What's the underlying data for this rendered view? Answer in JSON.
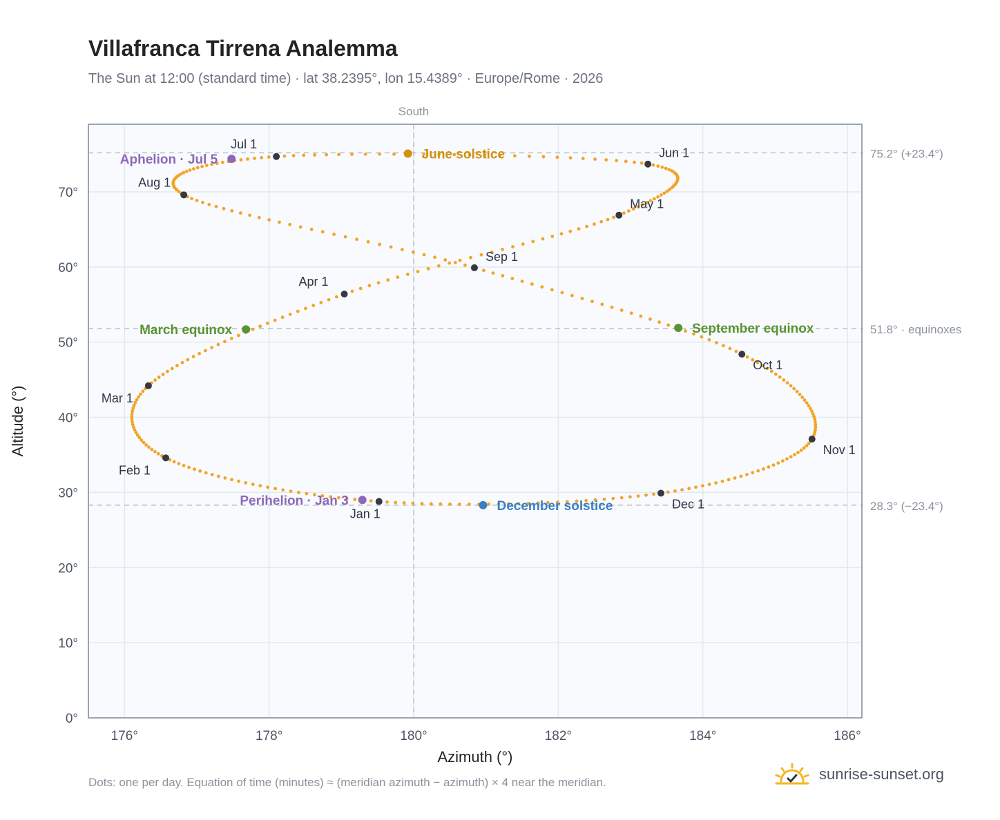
{
  "header": {
    "title": "Villafranca Tirrena Analemma",
    "subtitle": "The Sun at 12:00 (standard time) · lat 38.2395°, lon 15.4389° · Europe/Rome · 2026"
  },
  "footer": {
    "note": "Dots: one per day. Equation of time (minutes) ≈ (meridian azimuth − azimuth) × 4 near the meridian.",
    "brand": "sunrise-sunset.org",
    "brand_icon": "sunrise-logo-icon"
  },
  "chart_data": {
    "type": "scatter",
    "xlabel": "Azimuth (°)",
    "ylabel": "Altitude (°)",
    "xlim": [
      175.5,
      186.2
    ],
    "ylim": [
      0,
      79
    ],
    "xticks": [
      176,
      178,
      180,
      182,
      184,
      186
    ],
    "yticks": [
      0,
      10,
      20,
      30,
      40,
      50,
      60,
      70
    ],
    "x_tick_labels": [
      "176°",
      "178°",
      "180°",
      "182°",
      "184°",
      "186°"
    ],
    "y_tick_labels": [
      "0°",
      "10°",
      "20°",
      "30°",
      "40°",
      "50°",
      "60°",
      "70°"
    ],
    "grid": true,
    "meridian": {
      "azimuth": 180,
      "label": "South"
    },
    "reference_lines": [
      {
        "altitude": 75.2,
        "label": "75.2° (+23.4°)"
      },
      {
        "altitude": 51.8,
        "label": "51.8° · equinoxes"
      },
      {
        "altitude": 28.3,
        "label": "28.3° (−23.4°)"
      }
    ],
    "curve_anchors": [
      {
        "date": "Jan 1",
        "day": 1,
        "azimuth": 179.52,
        "altitude": 28.8
      },
      {
        "date": "Feb 1",
        "day": 32,
        "azimuth": 176.57,
        "altitude": 34.6
      },
      {
        "date": "Mar 1",
        "day": 60,
        "azimuth": 176.33,
        "altitude": 44.2
      },
      {
        "date": "Apr 1",
        "day": 91,
        "azimuth": 179.04,
        "altitude": 56.4
      },
      {
        "date": "May 1",
        "day": 121,
        "azimuth": 182.84,
        "altitude": 66.9
      },
      {
        "date": "Jun 1",
        "day": 152,
        "azimuth": 183.24,
        "altitude": 73.7
      },
      {
        "date": "Jul 1",
        "day": 182,
        "azimuth": 178.1,
        "altitude": 74.7
      },
      {
        "date": "Aug 1",
        "day": 213,
        "azimuth": 176.82,
        "altitude": 69.6
      },
      {
        "date": "Sep 1",
        "day": 244,
        "azimuth": 180.84,
        "altitude": 59.9
      },
      {
        "date": "Oct 1",
        "day": 274,
        "azimuth": 184.54,
        "altitude": 48.4
      },
      {
        "date": "Nov 1",
        "day": 305,
        "azimuth": 185.51,
        "altitude": 37.1
      },
      {
        "date": "Dec 1",
        "day": 335,
        "azimuth": 183.42,
        "altitude": 29.9
      }
    ],
    "month_markers": [
      {
        "label": "Jan 1",
        "azimuth": 179.52,
        "altitude": 28.8,
        "anchor": "below"
      },
      {
        "label": "Feb 1",
        "azimuth": 176.57,
        "altitude": 34.6,
        "anchor": "below-left"
      },
      {
        "label": "Mar 1",
        "azimuth": 176.33,
        "altitude": 44.2,
        "anchor": "below-left"
      },
      {
        "label": "Apr 1",
        "azimuth": 179.04,
        "altitude": 56.4,
        "anchor": "above-left"
      },
      {
        "label": "May 1",
        "azimuth": 182.84,
        "altitude": 66.9,
        "anchor": "above-right"
      },
      {
        "label": "Jun 1",
        "azimuth": 183.24,
        "altitude": 73.7,
        "anchor": "above-right"
      },
      {
        "label": "Jul 1",
        "azimuth": 178.1,
        "altitude": 74.7,
        "anchor": "above-left"
      },
      {
        "label": "Aug 1",
        "azimuth": 176.82,
        "altitude": 69.6,
        "anchor": "above-left"
      },
      {
        "label": "Sep 1",
        "azimuth": 180.84,
        "altitude": 59.9,
        "anchor": "above-right"
      },
      {
        "label": "Oct 1",
        "azimuth": 184.54,
        "altitude": 48.4,
        "anchor": "below-right"
      },
      {
        "label": "Nov 1",
        "azimuth": 185.51,
        "altitude": 37.1,
        "anchor": "below-right"
      },
      {
        "label": "Dec 1",
        "azimuth": 183.42,
        "altitude": 29.9,
        "anchor": "below-right"
      }
    ],
    "events": [
      {
        "label": "June solstice",
        "azimuth": 179.92,
        "altitude": 75.1,
        "color": "#d4900c",
        "anchor": "right"
      },
      {
        "label": "December solstice",
        "azimuth": 180.96,
        "altitude": 28.3,
        "color": "#3a7fc4",
        "anchor": "right"
      },
      {
        "label": "March equinox",
        "azimuth": 177.68,
        "altitude": 51.7,
        "color": "#5a9432",
        "anchor": "left"
      },
      {
        "label": "September equinox",
        "azimuth": 183.66,
        "altitude": 51.9,
        "color": "#5a9432",
        "anchor": "right"
      },
      {
        "label": "Aphelion · Jul 5",
        "azimuth": 177.48,
        "altitude": 74.4,
        "color": "#8e68b8",
        "anchor": "left"
      },
      {
        "label": "Perihelion · Jan 3",
        "azimuth": 179.29,
        "altitude": 29.0,
        "color": "#8e68b8",
        "anchor": "left"
      }
    ],
    "colors": {
      "curve": "#f2a427",
      "month_marker": "#343a40",
      "plot_background": "#f8fafd",
      "frame": "#98a4b4",
      "grid": "#e3e8ee",
      "reference_line": "#b6c1cc"
    }
  }
}
